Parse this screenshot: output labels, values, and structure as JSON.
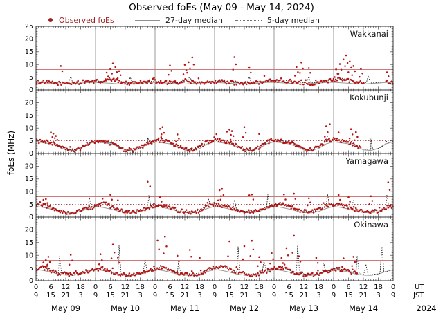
{
  "title": "Observed foEs (May 09 - May 14, 2024)",
  "legend": {
    "items": [
      {
        "label": "Observed foEs",
        "marker": "red-dot",
        "color": "#a02020"
      },
      {
        "label": "27-day median",
        "marker": "solid-line",
        "color": "#909090"
      },
      {
        "label": "5-day median",
        "marker": "dotted-line",
        "color": "#707070"
      }
    ]
  },
  "axis": {
    "ylabel": "foEs (MHz)",
    "y_major_ticks": [
      0,
      5,
      10,
      15,
      20,
      25
    ],
    "ut_tick_labels": [
      "0",
      "6",
      "12",
      "18"
    ],
    "jst_tick_labels": [
      "9",
      "15",
      "21",
      "3"
    ],
    "ut_label": "UT",
    "jst_label": "JST",
    "year_label": "2024",
    "days": [
      "May 09",
      "May 10",
      "May 11",
      "May 12",
      "May 13",
      "May 14"
    ]
  },
  "colors": {
    "dot": "#b41414",
    "median27": "#9a9a9a",
    "median5": "#1a1a1a",
    "ref_solid": "#cc6666",
    "ref_dotted": "#b03030",
    "grid_day": "#999999",
    "panel_border": "#333333"
  },
  "chart_data": {
    "type": "scatter",
    "x_hours_range": [
      0,
      144
    ],
    "x_start": "May 09 00:00 UT",
    "ylim": [
      0,
      25
    ],
    "y_unit": "MHz",
    "sample_step_hours": 3,
    "reference_lines": [
      {
        "y": 8,
        "style": "solid",
        "color": "#cc6666"
      },
      {
        "y": 5,
        "style": "dotted",
        "color": "#b03030"
      }
    ],
    "panels": [
      {
        "station": "Wakkanai",
        "baseline": [
          3.2,
          3.0,
          2.8,
          2.6,
          2.5,
          2.8,
          3.0,
          3.3,
          3.4,
          3.2,
          4.2,
          3.6,
          2.6,
          2.8,
          3.0,
          3.2,
          3.3,
          3.0,
          2.8,
          2.7,
          3.6,
          3.2,
          2.9,
          3.1,
          3.2,
          3.4,
          3.0,
          2.6,
          2.5,
          2.7,
          3.0,
          3.3,
          3.5,
          3.8,
          3.4,
          3.0,
          2.7,
          2.6,
          2.9,
          3.2,
          4.0,
          4.5,
          3.8,
          3.2,
          2.8,
          2.6,
          2.8,
          3.0,
          3.2
        ],
        "median27_cycle": [
          3.0,
          2.8,
          2.6,
          2.4,
          2.3,
          2.5,
          2.7,
          2.9
        ],
        "median5_spikes": [
          [
            14,
            5.2
          ],
          [
            38,
            5.0
          ],
          [
            62,
            5.4
          ],
          [
            86,
            5.1
          ],
          [
            110,
            5.3
          ],
          [
            134,
            5.6
          ]
        ],
        "spikes": [
          [
            10,
            9.4
          ],
          [
            28.5,
            6.8
          ],
          [
            30,
            8.2
          ],
          [
            31,
            10.4
          ],
          [
            32,
            9.0
          ],
          [
            33.5,
            7.4
          ],
          [
            54,
            9.6
          ],
          [
            60,
            9.9
          ],
          [
            61.5,
            10.9
          ],
          [
            63,
            12.8
          ],
          [
            80,
            12.9
          ],
          [
            86,
            8.7
          ],
          [
            105,
            9.0
          ],
          [
            107,
            10.8
          ],
          [
            110,
            8.6
          ],
          [
            121,
            8.1
          ],
          [
            122.5,
            10.2
          ],
          [
            124,
            12.0
          ],
          [
            125,
            13.6
          ],
          [
            126.5,
            11.2
          ],
          [
            128,
            9.4
          ],
          [
            131,
            8.3
          ],
          [
            141.5,
            6.9
          ]
        ],
        "data_gaps": [
          [
            132.5,
            141
          ]
        ]
      },
      {
        "station": "Kokubunji",
        "baseline": [
          4.8,
          4.6,
          4.3,
          3.4,
          1.5,
          1.2,
          2.0,
          4.0,
          4.6,
          4.4,
          4.0,
          3.0,
          1.3,
          1.1,
          2.2,
          4.3,
          4.9,
          5.2,
          4.4,
          3.2,
          1.6,
          1.3,
          2.4,
          4.6,
          5.4,
          5.0,
          4.3,
          3.3,
          1.5,
          1.4,
          2.5,
          4.4,
          5.2,
          4.8,
          4.5,
          3.5,
          1.7,
          1.5,
          2.6,
          4.8,
          5.5,
          5.0,
          4.4,
          3.2,
          1.6,
          1.3,
          1.8,
          3.5,
          4.8
        ],
        "median27_cycle": [
          4.6,
          4.2,
          3.8,
          2.8,
          1.4,
          1.2,
          2.0,
          3.8
        ],
        "median5_spikes": [
          [
            45,
            6.2
          ],
          [
            117.5,
            6.8
          ],
          [
            135,
            5.8
          ],
          [
            141,
            5.2
          ]
        ],
        "spikes": [
          [
            6,
            8.3
          ],
          [
            7,
            7.8
          ],
          [
            8,
            6.9
          ],
          [
            50,
            9.7
          ],
          [
            51,
            10.4
          ],
          [
            57,
            7.5
          ],
          [
            77,
            8.6
          ],
          [
            78,
            9.4
          ],
          [
            79,
            8.8
          ],
          [
            84,
            10.4
          ],
          [
            90,
            7.7
          ],
          [
            117,
            10.7
          ],
          [
            118.5,
            11.5
          ],
          [
            122,
            8.3
          ],
          [
            127,
            9.6
          ],
          [
            129,
            8.4
          ]
        ],
        "data_gaps": [
          [
            131,
            144
          ]
        ]
      },
      {
        "station": "Yamagawa",
        "baseline": [
          4.4,
          4.8,
          3.6,
          2.6,
          1.9,
          1.8,
          2.3,
          3.4,
          4.2,
          5.6,
          4.2,
          2.8,
          2.0,
          1.9,
          2.5,
          3.8,
          4.6,
          4.2,
          3.6,
          2.7,
          2.1,
          2.0,
          2.6,
          4.4,
          5.2,
          4.6,
          3.8,
          3.0,
          2.2,
          2.0,
          2.4,
          3.9,
          4.8,
          5.0,
          4.2,
          3.1,
          2.3,
          2.1,
          2.7,
          4.2,
          5.0,
          4.6,
          4.0,
          3.0,
          2.2,
          2.0,
          2.5,
          3.8,
          4.2
        ],
        "median27_cycle": [
          4.2,
          3.8,
          3.2,
          2.4,
          1.8,
          1.7,
          2.2,
          3.4
        ],
        "median5_spikes": [
          [
            21.5,
            7.8
          ],
          [
            45.5,
            8.6
          ],
          [
            69.5,
            7.2
          ],
          [
            80,
            6.8
          ],
          [
            93.5,
            8.9
          ],
          [
            117.5,
            9.3
          ],
          [
            128,
            6.6
          ],
          [
            141.5,
            8.8
          ]
        ],
        "spikes": [
          [
            3,
            6.8
          ],
          [
            4,
            7.1
          ],
          [
            30,
            8.8
          ],
          [
            33,
            6.6
          ],
          [
            45,
            13.9
          ],
          [
            46,
            12.1
          ],
          [
            50,
            7.8
          ],
          [
            74,
            10.6
          ],
          [
            75,
            11.1
          ],
          [
            86,
            8.6
          ],
          [
            87,
            8.9
          ],
          [
            100,
            8.9
          ],
          [
            104,
            9.2
          ],
          [
            110,
            7.4
          ],
          [
            122,
            8.7
          ],
          [
            126,
            7.8
          ],
          [
            135,
            8.2
          ],
          [
            142,
            13.7
          ]
        ],
        "data_gaps": []
      },
      {
        "station": "Okinawa",
        "baseline": [
          4.5,
          5.2,
          3.8,
          2.9,
          2.5,
          2.3,
          2.9,
          3.9,
          4.4,
          4.8,
          3.6,
          2.7,
          2.4,
          2.2,
          2.7,
          3.6,
          4.7,
          5.4,
          4.4,
          3.0,
          2.6,
          2.4,
          2.9,
          4.0,
          5.0,
          5.6,
          4.6,
          3.2,
          2.7,
          2.3,
          2.8,
          3.8,
          4.8,
          5.2,
          4.0,
          3.0,
          2.5,
          2.2,
          2.6,
          3.5,
          4.6,
          4.4,
          3.6,
          2.8,
          2.4,
          2.2,
          2.6,
          3.4,
          4.0
        ],
        "median27_cycle": [
          4.4,
          4.0,
          3.4,
          2.6,
          2.2,
          2.1,
          2.6,
          3.6
        ],
        "median5_spikes": [
          [
            9.5,
            9.6
          ],
          [
            33.5,
            13.8
          ],
          [
            44,
            8.2
          ],
          [
            57.5,
            7.6
          ],
          [
            81.5,
            13.4
          ],
          [
            92,
            8.0
          ],
          [
            105.5,
            13.9
          ],
          [
            116,
            7.0
          ],
          [
            129.5,
            9.8
          ],
          [
            133,
            6.5
          ],
          [
            139.5,
            13.4
          ]
        ],
        "spikes": [
          [
            3,
            7.2
          ],
          [
            4,
            8.1
          ],
          [
            5,
            9.4
          ],
          [
            14,
            10.2
          ],
          [
            26,
            10.4
          ],
          [
            31,
            14.2
          ],
          [
            33,
            9.1
          ],
          [
            49,
            15.8
          ],
          [
            52,
            17.3
          ],
          [
            57,
            9.8
          ],
          [
            62,
            12.1
          ],
          [
            66,
            9.0
          ],
          [
            78,
            15.5
          ],
          [
            84,
            13.6
          ],
          [
            87,
            15.7
          ],
          [
            90,
            9.3
          ],
          [
            95,
            10.9
          ],
          [
            99,
            8.9
          ],
          [
            101,
            12.8
          ],
          [
            104,
            17.7
          ],
          [
            106,
            9.6
          ],
          [
            113,
            9.0
          ],
          [
            124,
            8.8
          ],
          [
            128,
            9.4
          ]
        ],
        "data_gaps": [
          [
            129.5,
            144
          ]
        ]
      }
    ]
  }
}
